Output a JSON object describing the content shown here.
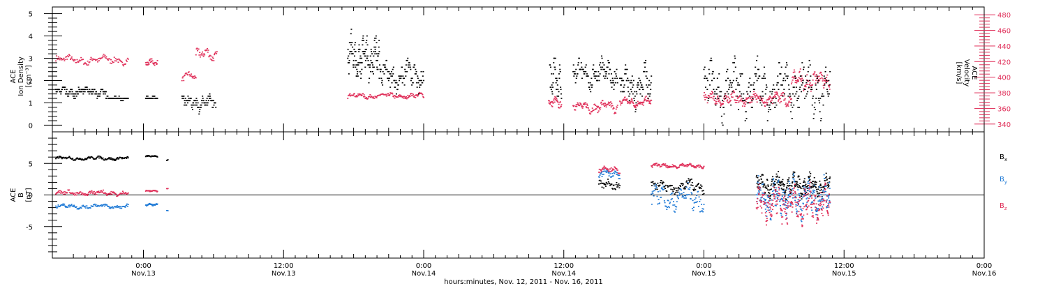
{
  "chart_data": [
    {
      "type": "scatter",
      "ylabel_left": "ACE\nIon Density\n[cm⁻³]",
      "ylabel_right": "ACE\nVelocity\n[km/s]",
      "ylim_left": [
        -0.3,
        5.3
      ],
      "ylim_right": [
        330,
        490
      ],
      "yticks_left": [
        "0",
        "1",
        "2",
        "3",
        "4",
        "5"
      ],
      "yticks_right": [
        "340",
        "360",
        "380",
        "400",
        "420",
        "440",
        "460",
        "480"
      ],
      "colors": {
        "density": "#000000",
        "velocity": "#e0305a"
      },
      "series": [
        {
          "axis": "left",
          "segments": [
            {
              "x": [
                -7.5,
                -3.2
              ],
              "base": 1.5,
              "amp": 0.3,
              "n": 120
            },
            {
              "x": [
                -3.2,
                -1.3
              ],
              "base": 1.2,
              "amp": 0.1,
              "n": 40
            },
            {
              "x": [
                0.2,
                1.2
              ],
              "base": 1.2,
              "amp": 0.1,
              "n": 30
            },
            {
              "x": [
                3.3,
                6.2
              ],
              "base": 1.0,
              "amp": 0.5,
              "n": 90
            },
            {
              "x": [
                17.5,
                20.2
              ],
              "base": 3.0,
              "amp": 1.4,
              "n": 140
            },
            {
              "x": [
                20.2,
                24.0
              ],
              "base": 2.2,
              "amp": 0.9,
              "n": 110
            },
            {
              "x": [
                34.8,
                35.8
              ],
              "base": 2.0,
              "amp": 1.6,
              "n": 40
            },
            {
              "x": [
                36.8,
                40.6
              ],
              "base": 2.3,
              "amp": 0.9,
              "n": 110
            },
            {
              "x": [
                40.8,
                43.5
              ],
              "base": 1.7,
              "amp": 1.3,
              "n": 90
            },
            {
              "x": [
                48.0,
                58.8
              ],
              "base": 1.6,
              "amp": 1.6,
              "n": 300
            }
          ]
        },
        {
          "axis": "right",
          "segments": [
            {
              "x": [
                -7.5,
                -1.3
              ],
              "base": 422,
              "amp": 8,
              "n": 110
            },
            {
              "x": [
                0.2,
                1.2
              ],
              "base": 418,
              "amp": 6,
              "n": 30
            },
            {
              "x": [
                3.3,
                4.5
              ],
              "base": 400,
              "amp": 8,
              "n": 25
            },
            {
              "x": [
                4.5,
                6.3
              ],
              "base": 428,
              "amp": 12,
              "n": 40
            },
            {
              "x": [
                17.5,
                24.0
              ],
              "base": 376,
              "amp": 5,
              "n": 140
            },
            {
              "x": [
                34.7,
                35.8
              ],
              "base": 366,
              "amp": 10,
              "n": 35
            },
            {
              "x": [
                36.8,
                40.6
              ],
              "base": 362,
              "amp": 10,
              "n": 100
            },
            {
              "x": [
                40.8,
                43.5
              ],
              "base": 368,
              "amp": 8,
              "n": 80
            },
            {
              "x": [
                48.0,
                55.5
              ],
              "base": 372,
              "amp": 12,
              "n": 220
            },
            {
              "x": [
                55.5,
                58.8
              ],
              "base": 396,
              "amp": 18,
              "n": 100
            }
          ]
        }
      ]
    },
    {
      "type": "scatter",
      "ylabel": "ACE\nB\n[nT]",
      "ylim": [
        -10,
        10
      ],
      "yticks": [
        "-5",
        "0",
        "5"
      ],
      "series": [
        {
          "name": "Bx",
          "color": "#000000",
          "segments": [
            {
              "x": [
                -7.5,
                -1.3
              ],
              "base": 5.8,
              "amp": 0.4,
              "n": 130
            },
            {
              "x": [
                0.2,
                1.2
              ],
              "base": 6.1,
              "amp": 0.2,
              "n": 30
            },
            {
              "x": [
                2.0,
                2.1
              ],
              "base": 5.5,
              "amp": 0.2,
              "n": 3
            },
            {
              "x": [
                39.0,
                40.8
              ],
              "base": 1.5,
              "amp": 1.2,
              "n": 40
            },
            {
              "x": [
                43.5,
                48.0
              ],
              "base": 1.4,
              "amp": 1.5,
              "n": 100
            },
            {
              "x": [
                52.5,
                58.8
              ],
              "base": 1.5,
              "amp": 2.5,
              "n": 250
            }
          ]
        },
        {
          "name": "By",
          "color": "#1f7ad6",
          "segments": [
            {
              "x": [
                -7.5,
                -1.3
              ],
              "base": -1.8,
              "amp": 0.5,
              "n": 120
            },
            {
              "x": [
                0.2,
                1.2
              ],
              "base": -1.6,
              "amp": 0.3,
              "n": 30
            },
            {
              "x": [
                2.0,
                2.1
              ],
              "base": -2.5,
              "amp": 0.2,
              "n": 3
            },
            {
              "x": [
                39.0,
                40.8
              ],
              "base": 3.3,
              "amp": 1.0,
              "n": 40
            },
            {
              "x": [
                43.5,
                48.0
              ],
              "base": -0.5,
              "amp": 2.8,
              "n": 110
            },
            {
              "x": [
                52.5,
                58.8
              ],
              "base": -0.5,
              "amp": 4.0,
              "n": 260
            }
          ]
        },
        {
          "name": "Bz",
          "color": "#e0305a",
          "segments": [
            {
              "x": [
                -7.5,
                -1.3
              ],
              "base": 0.3,
              "amp": 0.6,
              "n": 120
            },
            {
              "x": [
                0.2,
                1.2
              ],
              "base": 0.6,
              "amp": 0.2,
              "n": 30
            },
            {
              "x": [
                2.0,
                2.1
              ],
              "base": 1.0,
              "amp": 0.2,
              "n": 3
            },
            {
              "x": [
                39.0,
                40.8
              ],
              "base": 4.0,
              "amp": 0.7,
              "n": 40
            },
            {
              "x": [
                43.5,
                48.0
              ],
              "base": 4.6,
              "amp": 0.5,
              "n": 110
            },
            {
              "x": [
                52.5,
                58.8
              ],
              "base": -1.5,
              "amp": 3.8,
              "n": 260
            }
          ]
        }
      ],
      "legend": [
        "Bx",
        "By",
        "Bz"
      ]
    }
  ],
  "xaxis": {
    "xlim_hours": [
      -7.8,
      72
    ],
    "ticks": [
      {
        "h": 0,
        "top": "0:00",
        "bottom": "Nov.13"
      },
      {
        "h": 12,
        "top": "12:00",
        "bottom": "Nov.13"
      },
      {
        "h": 24,
        "top": "0:00",
        "bottom": "Nov.14"
      },
      {
        "h": 36,
        "top": "12:00",
        "bottom": "Nov.14"
      },
      {
        "h": 48,
        "top": "0:00",
        "bottom": "Nov.15"
      },
      {
        "h": 60,
        "top": "12:00",
        "bottom": "Nov.15"
      },
      {
        "h": 72,
        "top": "0:00",
        "bottom": "Nov.16"
      }
    ],
    "title": "hours:minutes, Nov. 12, 2011 - Nov. 16, 2011"
  }
}
